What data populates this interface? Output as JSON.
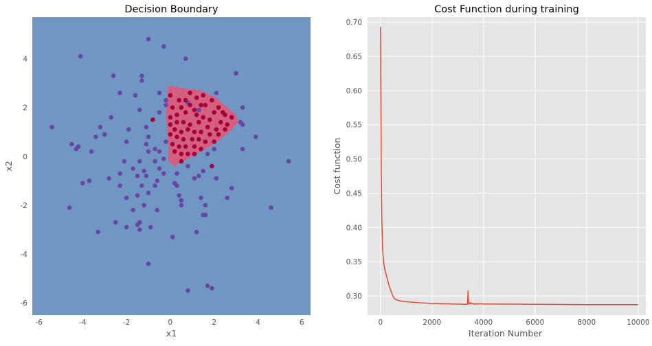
{
  "chart_data": [
    {
      "type": "scatter",
      "title": "Decision Boundary",
      "xlabel": "x1",
      "ylabel": "x2",
      "xlim": [
        -6.3,
        6.4
      ],
      "ylim": [
        -6.5,
        5.7
      ],
      "xticks": [
        -6,
        -4,
        -2,
        0,
        2,
        4,
        6
      ],
      "yticks": [
        -6,
        -4,
        -2,
        0,
        2,
        4
      ],
      "grid": false,
      "colors": {
        "region_class0": "#7097c4",
        "region_class1": "#d45f7f",
        "class0_point": "#6a46a4",
        "class1_point": "#a5003a"
      },
      "boundary": [
        [
          -0.1,
          2.9
        ],
        [
          0.6,
          2.8
        ],
        [
          1.4,
          2.7
        ],
        [
          2.1,
          2.4
        ],
        [
          2.6,
          2.0
        ],
        [
          3.0,
          1.7
        ],
        [
          3.1,
          1.4
        ],
        [
          2.8,
          1.1
        ],
        [
          2.3,
          0.7
        ],
        [
          1.8,
          0.4
        ],
        [
          1.2,
          0.1
        ],
        [
          0.6,
          -0.2
        ],
        [
          0.2,
          -0.4
        ],
        [
          -0.1,
          -0.2
        ],
        [
          -0.1,
          0.6
        ],
        [
          -0.2,
          1.7
        ]
      ],
      "series": [
        {
          "class": 0,
          "points": [
            [
              -4.1,
              4.1
            ],
            [
              -1.0,
              4.8
            ],
            [
              -0.3,
              4.5
            ],
            [
              0.7,
              4.0
            ],
            [
              -2.6,
              3.3
            ],
            [
              -1.3,
              3.3
            ],
            [
              -1.3,
              3.1
            ],
            [
              3.0,
              3.4
            ],
            [
              -2.3,
              2.6
            ],
            [
              -1.6,
              2.5
            ],
            [
              -0.5,
              2.6
            ],
            [
              2.1,
              2.6
            ],
            [
              -0.2,
              2.3
            ],
            [
              -0.2,
              2.1
            ],
            [
              0.8,
              2.2
            ],
            [
              3.3,
              2.0
            ],
            [
              -2.7,
              1.6
            ],
            [
              -1.4,
              1.9
            ],
            [
              -0.5,
              1.8
            ],
            [
              1.3,
              1.9
            ],
            [
              3.2,
              1.4
            ],
            [
              -5.4,
              1.2
            ],
            [
              -3.2,
              1.2
            ],
            [
              -3.4,
              0.8
            ],
            [
              -4.2,
              0.4
            ],
            [
              -4.5,
              0.5
            ],
            [
              -4.3,
              0.3
            ],
            [
              -3.0,
              0.9
            ],
            [
              -1.9,
              1.1
            ],
            [
              -1.1,
              1.2
            ],
            [
              3.3,
              1.3
            ],
            [
              3.9,
              0.8
            ],
            [
              -2.0,
              0.6
            ],
            [
              -1.0,
              0.8
            ],
            [
              -1.1,
              0.5
            ],
            [
              -0.7,
              0.3
            ],
            [
              -0.5,
              0.2
            ],
            [
              2.0,
              0.3
            ],
            [
              3.3,
              0.3
            ],
            [
              -3.6,
              0.2
            ],
            [
              -1.0,
              0.2
            ],
            [
              -0.2,
              0.6
            ],
            [
              5.4,
              -0.2
            ],
            [
              -2.1,
              -0.2
            ],
            [
              -1.4,
              -0.2
            ],
            [
              -0.7,
              -0.2
            ],
            [
              -0.3,
              -0.1
            ],
            [
              0.8,
              -0.4
            ],
            [
              1.7,
              0.1
            ],
            [
              -1.7,
              -0.5
            ],
            [
              -0.5,
              -0.5
            ],
            [
              -0.3,
              -0.7
            ],
            [
              0.3,
              -0.7
            ],
            [
              1.3,
              -0.8
            ],
            [
              1.5,
              -0.6
            ],
            [
              -3.7,
              -1.0
            ],
            [
              -4.0,
              -1.1
            ],
            [
              -2.3,
              -0.7
            ],
            [
              -1.2,
              -0.6
            ],
            [
              -1.5,
              -0.8
            ],
            [
              -0.7,
              -1.2
            ],
            [
              0.2,
              -1.1
            ],
            [
              1.1,
              -0.9
            ],
            [
              2.1,
              -0.9
            ],
            [
              2.8,
              -1.3
            ],
            [
              -2.3,
              -1.2
            ],
            [
              -1.3,
              -1.2
            ],
            [
              -1.0,
              -1.5
            ],
            [
              -0.6,
              -1.0
            ],
            [
              0.3,
              -1.2
            ],
            [
              -2.0,
              -1.7
            ],
            [
              -1.5,
              -1.6
            ],
            [
              -1.2,
              -2.0
            ],
            [
              0.5,
              -1.8
            ],
            [
              1.4,
              -1.7
            ],
            [
              -4.6,
              -2.1
            ],
            [
              -1.7,
              -2.2
            ],
            [
              -0.6,
              -2.2
            ],
            [
              0.5,
              -2.0
            ],
            [
              1.6,
              -2.0
            ],
            [
              2.6,
              -1.7
            ],
            [
              4.6,
              -2.1
            ],
            [
              -2.5,
              -2.7
            ],
            [
              -1.4,
              -2.7
            ],
            [
              -0.9,
              -2.9
            ],
            [
              -1.5,
              -2.8
            ],
            [
              -2.0,
              -2.9
            ],
            [
              1.6,
              -2.4
            ],
            [
              1.5,
              -2.4
            ],
            [
              -3.3,
              -3.1
            ],
            [
              -1.4,
              -3.0
            ],
            [
              0.1,
              -3.3
            ],
            [
              1.2,
              -3.1
            ],
            [
              -1.0,
              -4.4
            ],
            [
              1.7,
              -5.3
            ],
            [
              0.8,
              -5.5
            ],
            [
              1.9,
              -5.4
            ],
            [
              -1.1,
              -0.8
            ],
            [
              0.4,
              -1.6
            ],
            [
              -2.8,
              -0.9
            ]
          ]
        },
        {
          "class": 1,
          "points": [
            [
              0.0,
              2.5
            ],
            [
              0.4,
              2.3
            ],
            [
              0.7,
              2.3
            ],
            [
              1.2,
              2.4
            ],
            [
              1.5,
              2.5
            ],
            [
              1.9,
              2.3
            ],
            [
              2.2,
              2.0
            ],
            [
              2.4,
              1.8
            ],
            [
              0.1,
              2.0
            ],
            [
              0.5,
              2.0
            ],
            [
              0.9,
              2.1
            ],
            [
              1.1,
              1.9
            ],
            [
              1.6,
              2.1
            ],
            [
              2.0,
              1.8
            ],
            [
              2.5,
              1.7
            ],
            [
              2.8,
              1.6
            ],
            [
              0.0,
              1.6
            ],
            [
              0.3,
              1.7
            ],
            [
              0.7,
              1.8
            ],
            [
              1.2,
              1.7
            ],
            [
              1.5,
              1.6
            ],
            [
              1.8,
              1.5
            ],
            [
              2.3,
              1.4
            ],
            [
              2.6,
              1.3
            ],
            [
              -0.8,
              1.5
            ],
            [
              0.0,
              1.3
            ],
            [
              0.3,
              1.4
            ],
            [
              0.6,
              1.4
            ],
            [
              0.9,
              1.3
            ],
            [
              1.3,
              1.4
            ],
            [
              1.7,
              1.2
            ],
            [
              2.1,
              1.1
            ],
            [
              2.5,
              1.1
            ],
            [
              0.2,
              1.1
            ],
            [
              0.5,
              1.0
            ],
            [
              0.8,
              1.1
            ],
            [
              1.1,
              1.0
            ],
            [
              1.4,
              1.0
            ],
            [
              1.8,
              0.9
            ],
            [
              2.2,
              0.9
            ],
            [
              0.0,
              0.9
            ],
            [
              0.3,
              0.8
            ],
            [
              0.6,
              0.7
            ],
            [
              1.0,
              0.7
            ],
            [
              1.3,
              0.7
            ],
            [
              1.6,
              0.6
            ],
            [
              2.0,
              0.6
            ],
            [
              0.1,
              0.5
            ],
            [
              0.4,
              0.4
            ],
            [
              0.7,
              0.4
            ],
            [
              1.1,
              0.4
            ],
            [
              1.4,
              0.3
            ],
            [
              0.2,
              0.2
            ],
            [
              0.5,
              0.1
            ],
            [
              0.8,
              0.1
            ],
            [
              1.1,
              0.1
            ],
            [
              1.9,
              -0.4
            ],
            [
              0.5,
              -0.2
            ],
            [
              0.9,
              2.6
            ],
            [
              1.4,
              2.1
            ]
          ]
        }
      ]
    },
    {
      "type": "line",
      "title": "Cost Function during training",
      "xlabel": "Iteration Number",
      "ylabel": "Cost function",
      "xlim": [
        -500,
        10300
      ],
      "ylim": [
        0.272,
        0.707
      ],
      "xticks": [
        0,
        2000,
        4000,
        6000,
        8000,
        10000
      ],
      "yticks": [
        "0.30",
        "0.35",
        "0.40",
        "0.45",
        "0.50",
        "0.55",
        "0.60",
        "0.65",
        "0.70"
      ],
      "grid": true,
      "colors": {
        "line": "#e24a33",
        "background": "#e5e5e5",
        "gridline": "#ffffff"
      },
      "x": [
        0,
        15,
        30,
        50,
        80,
        120,
        170,
        230,
        300,
        380,
        460,
        540,
        650,
        800,
        1000,
        1500,
        2000,
        2500,
        3000,
        3300,
        3380,
        3400,
        3420,
        3440,
        3480,
        3520,
        3560,
        3600,
        3700,
        4000,
        5000,
        6000,
        7000,
        8000,
        9000,
        10000
      ],
      "y": [
        0.693,
        0.6,
        0.485,
        0.42,
        0.37,
        0.35,
        0.338,
        0.33,
        0.32,
        0.31,
        0.302,
        0.296,
        0.294,
        0.2925,
        0.2915,
        0.29,
        0.289,
        0.2885,
        0.288,
        0.2878,
        0.2878,
        0.3075,
        0.289,
        0.288,
        0.2905,
        0.2885,
        0.2895,
        0.288,
        0.2885,
        0.2882,
        0.288,
        0.2878,
        0.2875,
        0.2872,
        0.2872,
        0.2872
      ]
    }
  ]
}
